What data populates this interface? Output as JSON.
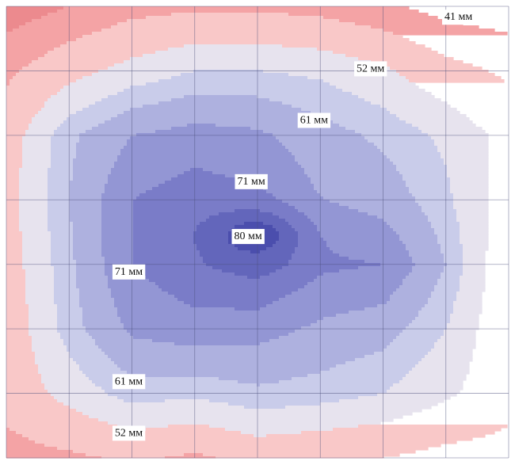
{
  "chart_data": {
    "type": "heatmap",
    "unit": "мм",
    "colors": {
      "high": "#6a6abd",
      "low": "#f4a3a5",
      "grid": "#4a4f7a",
      "label_bg": "#ffffff"
    },
    "contour_levels": [
      {
        "label": "41 мм",
        "value": 41
      },
      {
        "label": "52 мм",
        "value": 52
      },
      {
        "label": "61 мм",
        "value": 61
      },
      {
        "label": "71 мм",
        "value": 71
      },
      {
        "label": "80 мм",
        "value": 80
      }
    ],
    "bands": [
      {
        "min": 30,
        "max": 41,
        "color": "#ec8a8e"
      },
      {
        "min": 41,
        "max": 46,
        "color": "#f4a3a5"
      },
      {
        "min": 46,
        "max": 52,
        "color": "#f9c8c8"
      },
      {
        "min": 52,
        "max": 57,
        "color": "#e7e3ee"
      },
      {
        "min": 57,
        "max": 61,
        "color": "#c9ccea"
      },
      {
        "min": 61,
        "max": 66,
        "color": "#aeb1df"
      },
      {
        "min": 66,
        "max": 71,
        "color": "#9396d4"
      },
      {
        "min": 71,
        "max": 76,
        "color": "#7a7cc8"
      },
      {
        "min": 76,
        "max": 80,
        "color": "#6366bb"
      },
      {
        "min": 80,
        "max": 99,
        "color": "#4b4ead"
      }
    ],
    "labels": [
      {
        "text": "41 мм",
        "gx": 7.2,
        "gy": 0.15
      },
      {
        "text": "52 мм",
        "gx": 5.8,
        "gy": 0.95
      },
      {
        "text": "61 мм",
        "gx": 4.9,
        "gy": 1.75
      },
      {
        "text": "71 мм",
        "gx": 3.9,
        "gy": 2.7
      },
      {
        "text": "80 мм",
        "gx": 3.85,
        "gy": 3.55
      },
      {
        "text": "71 мм",
        "gx": 1.95,
        "gy": 4.1
      },
      {
        "text": "61 мм",
        "gx": 1.95,
        "gy": 5.8
      },
      {
        "text": "52 мм",
        "gx": 1.95,
        "gy": 6.6
      }
    ],
    "grid_size": {
      "cols": 8,
      "rows": 7
    },
    "values": [
      [
        38,
        41,
        44,
        45,
        45,
        44,
        42,
        39,
        38
      ],
      [
        45,
        50,
        54,
        57,
        57,
        56,
        53,
        48,
        45
      ],
      [
        49,
        60,
        66,
        68,
        67,
        63,
        60,
        56,
        50
      ],
      [
        50,
        61,
        71,
        74,
        72,
        66,
        64,
        58,
        49
      ],
      [
        49,
        60,
        71,
        75,
        78,
        72,
        71,
        61,
        47
      ],
      [
        48,
        59,
        67,
        69,
        68,
        65,
        63,
        57,
        47
      ],
      [
        48,
        54,
        59,
        58,
        60,
        59,
        57,
        53,
        48
      ],
      [
        44,
        45,
        47,
        45,
        48,
        47,
        46,
        44,
        44
      ]
    ],
    "hotspot": {
      "value": 82,
      "gx": 3.95,
      "gy": 3.55,
      "sx": 0.75,
      "sy": 0.38
    },
    "grid": true
  }
}
